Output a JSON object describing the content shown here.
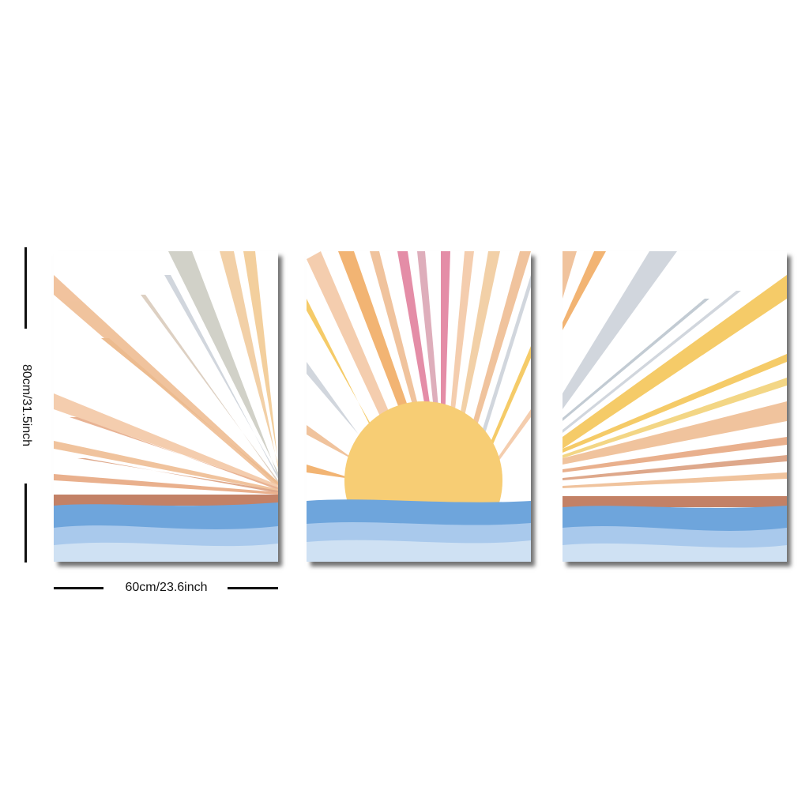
{
  "product": {
    "panels": [
      {
        "name": "left",
        "theme": "rays-from-right"
      },
      {
        "name": "center",
        "theme": "rising-sun"
      },
      {
        "name": "right",
        "theme": "rays-from-left"
      }
    ],
    "width_label": "60cm/23.6inch",
    "height_label": "80cm/31.5inch"
  },
  "palette": {
    "sun": "#f6c869",
    "sea_dark": "#6ea5dc",
    "sea_light": "#cfe1f3",
    "horizon": "#b86b4b",
    "ray_peach": "#eeb98d",
    "ray_orange": "#f0a85b",
    "ray_pink": "#e07a98",
    "ray_yellow": "#f4c24e",
    "ray_grey": "#c9d0d8"
  }
}
